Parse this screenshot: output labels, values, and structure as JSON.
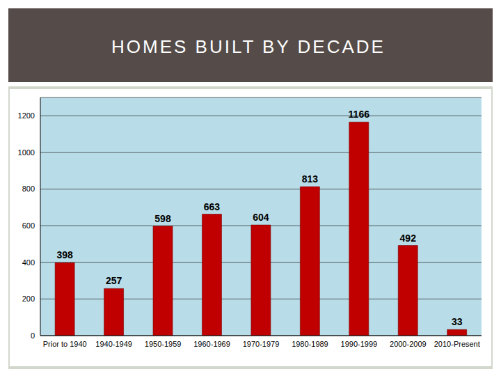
{
  "chart_data": {
    "type": "bar",
    "title": "HOMES BUILT BY DECADE",
    "categories": [
      "Prior to 1940",
      "1940-1949",
      "1950-1959",
      "1960-1969",
      "1970-1979",
      "1980-1989",
      "1990-1999",
      "2000-2009",
      "2010-Present"
    ],
    "values": [
      398,
      257,
      598,
      663,
      604,
      813,
      1166,
      492,
      33
    ],
    "color": "#c00000",
    "ylim": [
      0,
      1300
    ],
    "yticks": [
      0,
      200,
      400,
      600,
      800,
      1000,
      1200
    ],
    "grid": true,
    "data_labels": true
  }
}
